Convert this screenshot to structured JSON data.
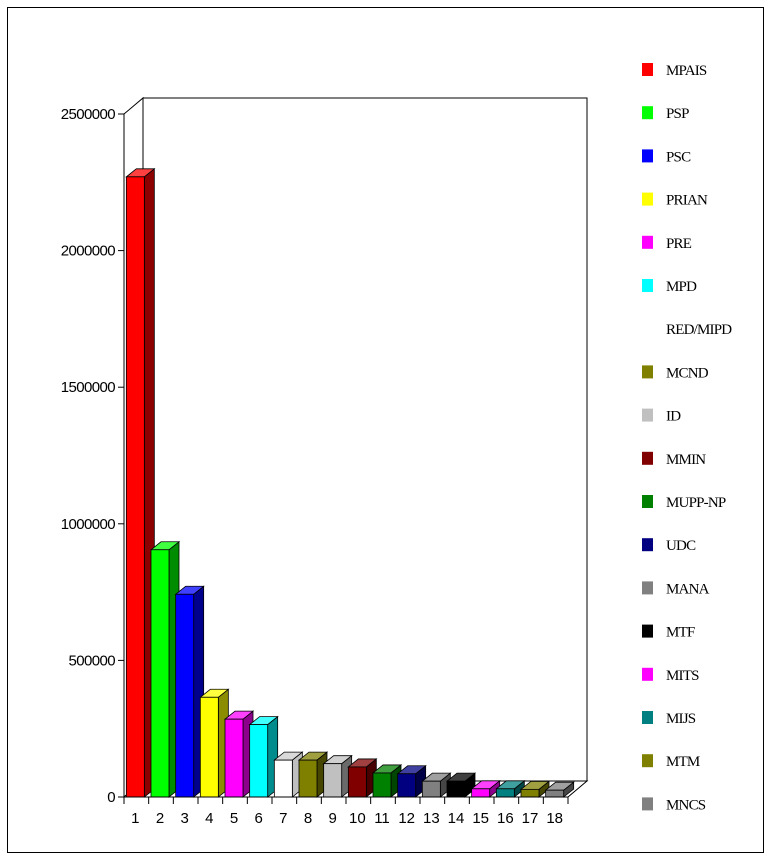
{
  "chart_data": {
    "type": "bar",
    "categories": [
      "1",
      "2",
      "3",
      "4",
      "5",
      "6",
      "7",
      "8",
      "9",
      "10",
      "11",
      "12",
      "13",
      "14",
      "15",
      "16",
      "17",
      "18"
    ],
    "series": [
      {
        "values": [
          2270000,
          905000,
          742000,
          365000,
          285000,
          265000,
          135000,
          135000,
          122000,
          110000,
          88000,
          85000,
          58000,
          58000,
          30000,
          30000,
          28000,
          25000
        ]
      }
    ],
    "legend": [
      {
        "label": "MPAIS",
        "color": "#ff0000"
      },
      {
        "label": "PSP",
        "color": "#00ff00"
      },
      {
        "label": "PSC",
        "color": "#0000ff"
      },
      {
        "label": "PRIAN",
        "color": "#ffff00"
      },
      {
        "label": "PRE",
        "color": "#ff00ff"
      },
      {
        "label": "MPD",
        "color": "#00ffff"
      },
      {
        "label": "RED/MIPD",
        "color": "#ffffff"
      },
      {
        "label": "MCND",
        "color": "#808000"
      },
      {
        "label": "ID",
        "color": "#c0c0c0"
      },
      {
        "label": "MMIN",
        "color": "#800000"
      },
      {
        "label": "MUPP-NP",
        "color": "#008000"
      },
      {
        "label": "UDC",
        "color": "#000080"
      },
      {
        "label": "MANA",
        "color": "#808080"
      },
      {
        "label": "MTF",
        "color": "#000000"
      },
      {
        "label": "MITS",
        "color": "#ff00ff"
      },
      {
        "label": "MIJS",
        "color": "#008080"
      },
      {
        "label": "MTM",
        "color": "#808000"
      },
      {
        "label": "MNCS",
        "color": "#808080"
      }
    ],
    "bar_colors": [
      "#ff0000",
      "#00ff00",
      "#0000ff",
      "#ffff00",
      "#ff00ff",
      "#00ffff",
      "#ffffff",
      "#808000",
      "#c0c0c0",
      "#800000",
      "#008000",
      "#000080",
      "#808080",
      "#000000",
      "#ff00ff",
      "#008080",
      "#808000",
      "#808080"
    ],
    "y_ticks": [
      "0",
      "500000",
      "1000000",
      "1500000",
      "2000000",
      "2500000"
    ],
    "ylim": [
      0,
      2500000
    ],
    "grid": false,
    "legend_position": "right",
    "style": "3d"
  }
}
